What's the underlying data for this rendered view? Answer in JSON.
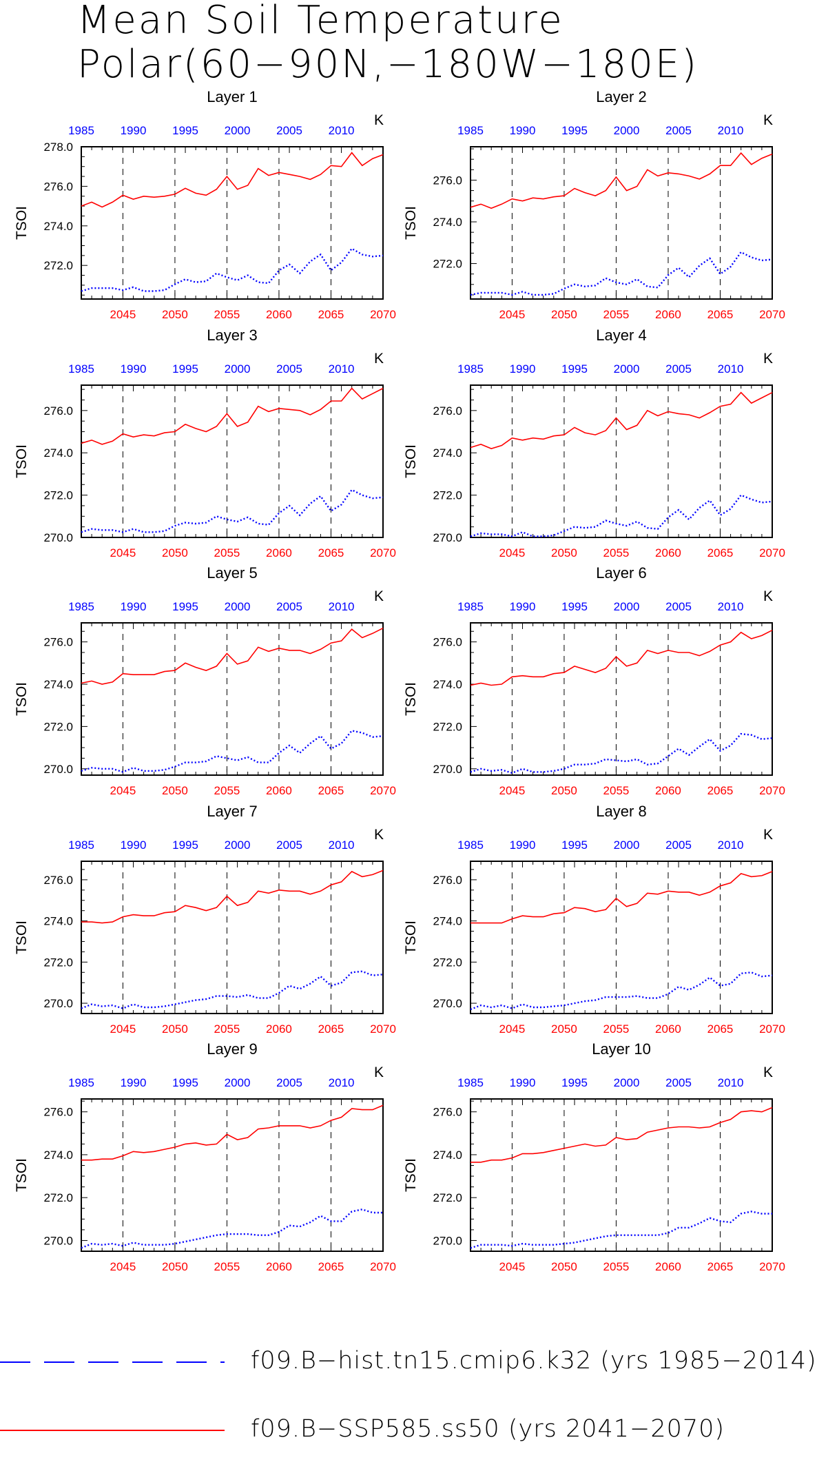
{
  "title": [
    "Mean Soil Temperature",
    "Polar(60−90N,−180W−180E)"
  ],
  "legend": [
    {
      "label": "f09.B−hist.tn15.cmip6.k32 (yrs 1985−2014)",
      "color": "#0000ff",
      "style": "dashed"
    },
    {
      "label": "f09.B−SSP585.ss50 (yrs 2041−2070)",
      "color": "#ff0000",
      "style": "solid"
    }
  ],
  "chart_data": {
    "type": "line",
    "ylabel": "TSOI",
    "units": "K",
    "x_bottom": {
      "range": [
        2041,
        2070
      ],
      "ticks": [
        2045,
        2050,
        2055,
        2060,
        2065,
        2070
      ],
      "color": "#ff0000"
    },
    "x_top": {
      "range": [
        1985,
        2014
      ],
      "ticks": [
        1985,
        1990,
        1995,
        2000,
        2005,
        2010
      ],
      "color": "#0000ff"
    },
    "grid": "vertical dashed at bottom ticks",
    "panels": [
      {
        "title": "Layer 1",
        "ylim": [
          270.3,
          278.0
        ],
        "yticks": [
          "272.0",
          "274.0",
          "276.0",
          "278.0"
        ],
        "series": [
          {
            "color": "#ff0000",
            "values": [
              275.0,
              275.2,
              274.95,
              275.2,
              275.55,
              275.35,
              275.5,
              275.45,
              275.5,
              275.6,
              275.9,
              275.65,
              275.55,
              275.85,
              276.5,
              275.85,
              276.05,
              276.9,
              276.55,
              276.7,
              276.6,
              276.5,
              276.35,
              276.6,
              277.05,
              277.0,
              277.7,
              277.05,
              277.4,
              277.6
            ]
          },
          {
            "color": "#0000ff",
            "values": [
              270.7,
              270.85,
              270.85,
              270.85,
              270.75,
              270.9,
              270.7,
              270.7,
              270.75,
              271.05,
              271.3,
              271.15,
              271.2,
              271.6,
              271.4,
              271.25,
              271.5,
              271.15,
              271.1,
              271.75,
              272.05,
              271.6,
              272.2,
              272.55,
              271.75,
              272.15,
              272.85,
              272.55,
              272.45,
              272.5
            ]
          }
        ]
      },
      {
        "title": "Layer 2",
        "ylim": [
          270.3,
          277.6
        ],
        "yticks": [
          "272.0",
          "274.0",
          "276.0"
        ],
        "series": [
          {
            "color": "#ff0000",
            "values": [
              274.7,
              274.85,
              274.65,
              274.85,
              275.1,
              275.0,
              275.15,
              275.1,
              275.2,
              275.25,
              275.6,
              275.4,
              275.25,
              275.5,
              276.15,
              275.5,
              275.7,
              276.5,
              276.2,
              276.35,
              276.3,
              276.2,
              276.05,
              276.3,
              276.7,
              276.7,
              277.3,
              276.75,
              277.05,
              277.25
            ]
          },
          {
            "color": "#0000ff",
            "values": [
              270.5,
              270.6,
              270.6,
              270.6,
              270.5,
              270.65,
              270.5,
              270.5,
              270.55,
              270.8,
              271.0,
              270.9,
              270.95,
              271.3,
              271.1,
              271.0,
              271.25,
              270.9,
              270.85,
              271.45,
              271.8,
              271.35,
              271.9,
              272.25,
              271.5,
              271.85,
              272.55,
              272.3,
              272.15,
              272.2
            ]
          }
        ]
      },
      {
        "title": "Layer 3",
        "ylim": [
          270.0,
          277.2
        ],
        "yticks": [
          "270.0",
          "272.0",
          "274.0",
          "276.0"
        ],
        "series": [
          {
            "color": "#ff0000",
            "values": [
              274.45,
              274.6,
              274.4,
              274.55,
              274.9,
              274.75,
              274.85,
              274.8,
              274.95,
              275.0,
              275.35,
              275.15,
              275.0,
              275.25,
              275.85,
              275.25,
              275.45,
              276.2,
              275.95,
              276.1,
              276.05,
              276.0,
              275.8,
              276.05,
              276.45,
              276.45,
              277.05,
              276.55,
              276.8,
              277.05
            ]
          },
          {
            "color": "#0000ff",
            "values": [
              270.25,
              270.4,
              270.35,
              270.35,
              270.25,
              270.4,
              270.25,
              270.25,
              270.3,
              270.55,
              270.7,
              270.65,
              270.7,
              271.0,
              270.85,
              270.75,
              270.95,
              270.65,
              270.6,
              271.15,
              271.5,
              271.05,
              271.6,
              271.95,
              271.25,
              271.55,
              272.25,
              272.0,
              271.85,
              271.9
            ]
          }
        ]
      },
      {
        "title": "Layer 4",
        "ylim": [
          270.0,
          277.2
        ],
        "yticks": [
          "270.0",
          "272.0",
          "274.0",
          "276.0"
        ],
        "series": [
          {
            "color": "#ff0000",
            "values": [
              274.25,
              274.4,
              274.2,
              274.35,
              274.7,
              274.6,
              274.7,
              274.65,
              274.8,
              274.85,
              275.2,
              274.95,
              274.85,
              275.05,
              275.65,
              275.1,
              275.3,
              276.0,
              275.75,
              275.95,
              275.85,
              275.8,
              275.65,
              275.9,
              276.2,
              276.3,
              276.85,
              276.35,
              276.6,
              276.85
            ]
          },
          {
            "color": "#0000ff",
            "values": [
              270.05,
              270.2,
              270.15,
              270.15,
              270.05,
              270.25,
              270.05,
              270.05,
              270.1,
              270.3,
              270.5,
              270.45,
              270.5,
              270.8,
              270.65,
              270.55,
              270.75,
              270.45,
              270.4,
              270.95,
              271.3,
              270.85,
              271.4,
              271.75,
              271.05,
              271.35,
              272.0,
              271.8,
              271.65,
              271.7
            ]
          }
        ]
      },
      {
        "title": "Layer 5",
        "ylim": [
          269.7,
          276.9
        ],
        "yticks": [
          "270.0",
          "272.0",
          "274.0",
          "276.0"
        ],
        "series": [
          {
            "color": "#ff0000",
            "values": [
              274.05,
              274.15,
              274.0,
              274.1,
              274.5,
              274.45,
              274.45,
              274.45,
              274.6,
              274.65,
              275.0,
              274.8,
              274.65,
              274.85,
              275.45,
              274.95,
              275.1,
              275.75,
              275.55,
              275.7,
              275.6,
              275.6,
              275.45,
              275.65,
              275.95,
              276.05,
              276.6,
              276.2,
              276.4,
              276.65
            ]
          },
          {
            "color": "#0000ff",
            "values": [
              269.9,
              270.05,
              270.0,
              270.0,
              269.85,
              270.05,
              269.9,
              269.9,
              269.95,
              270.1,
              270.3,
              270.3,
              270.35,
              270.6,
              270.5,
              270.4,
              270.55,
              270.3,
              270.3,
              270.75,
              271.1,
              270.75,
              271.2,
              271.55,
              270.95,
              271.2,
              271.8,
              271.7,
              271.5,
              271.55
            ]
          }
        ]
      },
      {
        "title": "Layer 6",
        "ylim": [
          269.7,
          276.9
        ],
        "yticks": [
          "270.0",
          "272.0",
          "274.0",
          "276.0"
        ],
        "series": [
          {
            "color": "#ff0000",
            "values": [
              273.95,
              274.05,
              273.95,
              274.0,
              274.35,
              274.4,
              274.35,
              274.35,
              274.5,
              274.55,
              274.85,
              274.7,
              274.55,
              274.75,
              275.3,
              274.85,
              275.0,
              275.6,
              275.45,
              275.6,
              275.5,
              275.5,
              275.35,
              275.55,
              275.85,
              276.0,
              276.45,
              276.15,
              276.3,
              276.55
            ]
          },
          {
            "color": "#0000ff",
            "values": [
              269.85,
              270.0,
              269.9,
              269.95,
              269.8,
              270.0,
              269.85,
              269.85,
              269.9,
              270.0,
              270.2,
              270.2,
              270.25,
              270.45,
              270.4,
              270.35,
              270.45,
              270.2,
              270.25,
              270.6,
              270.95,
              270.65,
              271.05,
              271.4,
              270.85,
              271.1,
              271.65,
              271.6,
              271.4,
              271.45
            ]
          }
        ]
      },
      {
        "title": "Layer 7",
        "ylim": [
          269.5,
          276.9
        ],
        "yticks": [
          "270.0",
          "272.0",
          "274.0",
          "276.0"
        ],
        "series": [
          {
            "color": "#ff0000",
            "values": [
              273.95,
              273.95,
              273.9,
              273.95,
              274.2,
              274.3,
              274.25,
              274.25,
              274.4,
              274.45,
              274.75,
              274.65,
              274.5,
              274.65,
              275.2,
              274.75,
              274.9,
              275.45,
              275.35,
              275.5,
              275.45,
              275.45,
              275.3,
              275.45,
              275.75,
              275.9,
              276.4,
              276.15,
              276.25,
              276.45
            ]
          },
          {
            "color": "#0000ff",
            "values": [
              269.75,
              269.95,
              269.85,
              269.9,
              269.75,
              269.95,
              269.8,
              269.8,
              269.85,
              269.95,
              270.05,
              270.15,
              270.2,
              270.35,
              270.35,
              270.3,
              270.4,
              270.25,
              270.25,
              270.5,
              270.85,
              270.7,
              270.95,
              271.3,
              270.85,
              271.0,
              271.5,
              271.55,
              271.35,
              271.4
            ]
          }
        ]
      },
      {
        "title": "Layer 8",
        "ylim": [
          269.5,
          276.9
        ],
        "yticks": [
          "270.0",
          "272.0",
          "274.0",
          "276.0"
        ],
        "series": [
          {
            "color": "#ff0000",
            "values": [
              273.9,
              273.9,
              273.9,
              273.9,
              274.1,
              274.25,
              274.2,
              274.2,
              274.35,
              274.4,
              274.65,
              274.6,
              274.45,
              274.55,
              275.1,
              274.7,
              274.85,
              275.35,
              275.3,
              275.45,
              275.4,
              275.4,
              275.25,
              275.4,
              275.7,
              275.85,
              276.3,
              276.15,
              276.2,
              276.4
            ]
          },
          {
            "color": "#0000ff",
            "values": [
              269.7,
              269.9,
              269.8,
              269.9,
              269.75,
              269.95,
              269.8,
              269.8,
              269.85,
              269.9,
              270.0,
              270.1,
              270.15,
              270.3,
              270.3,
              270.3,
              270.35,
              270.25,
              270.25,
              270.45,
              270.8,
              270.65,
              270.9,
              271.25,
              270.85,
              270.95,
              271.45,
              271.5,
              271.3,
              271.35
            ]
          }
        ]
      },
      {
        "title": "Layer 9",
        "ylim": [
          269.5,
          276.6
        ],
        "yticks": [
          "270.0",
          "272.0",
          "274.0",
          "276.0"
        ],
        "series": [
          {
            "color": "#ff0000",
            "values": [
              273.75,
              273.75,
              273.8,
              273.8,
              273.95,
              274.15,
              274.1,
              274.15,
              274.25,
              274.35,
              274.5,
              274.55,
              274.45,
              274.5,
              274.95,
              274.7,
              274.8,
              275.2,
              275.25,
              275.35,
              275.35,
              275.35,
              275.25,
              275.35,
              275.6,
              275.75,
              276.15,
              276.1,
              276.1,
              276.3
            ]
          },
          {
            "color": "#0000ff",
            "values": [
              269.65,
              269.85,
              269.8,
              269.85,
              269.75,
              269.9,
              269.8,
              269.8,
              269.8,
              269.85,
              269.95,
              270.05,
              270.15,
              270.25,
              270.3,
              270.3,
              270.3,
              270.25,
              270.25,
              270.4,
              270.7,
              270.65,
              270.85,
              271.15,
              270.9,
              270.9,
              271.35,
              271.45,
              271.3,
              271.3
            ]
          }
        ]
      },
      {
        "title": "Layer 10",
        "ylim": [
          269.5,
          276.6
        ],
        "yticks": [
          "270.0",
          "272.0",
          "274.0",
          "276.0"
        ],
        "series": [
          {
            "color": "#ff0000",
            "values": [
              273.65,
              273.65,
              273.75,
              273.75,
              273.85,
              274.05,
              274.05,
              274.1,
              274.2,
              274.3,
              274.4,
              274.5,
              274.4,
              274.45,
              274.8,
              274.7,
              274.75,
              275.05,
              275.15,
              275.25,
              275.3,
              275.3,
              275.25,
              275.3,
              275.5,
              275.65,
              276.0,
              276.05,
              276.0,
              276.2
            ]
          },
          {
            "color": "#0000ff",
            "values": [
              269.65,
              269.8,
              269.8,
              269.8,
              269.75,
              269.85,
              269.8,
              269.8,
              269.8,
              269.85,
              269.9,
              270.0,
              270.1,
              270.2,
              270.25,
              270.25,
              270.25,
              270.25,
              270.25,
              270.35,
              270.6,
              270.6,
              270.8,
              271.05,
              270.9,
              270.85,
              271.25,
              271.35,
              271.25,
              271.25
            ]
          }
        ]
      }
    ]
  }
}
